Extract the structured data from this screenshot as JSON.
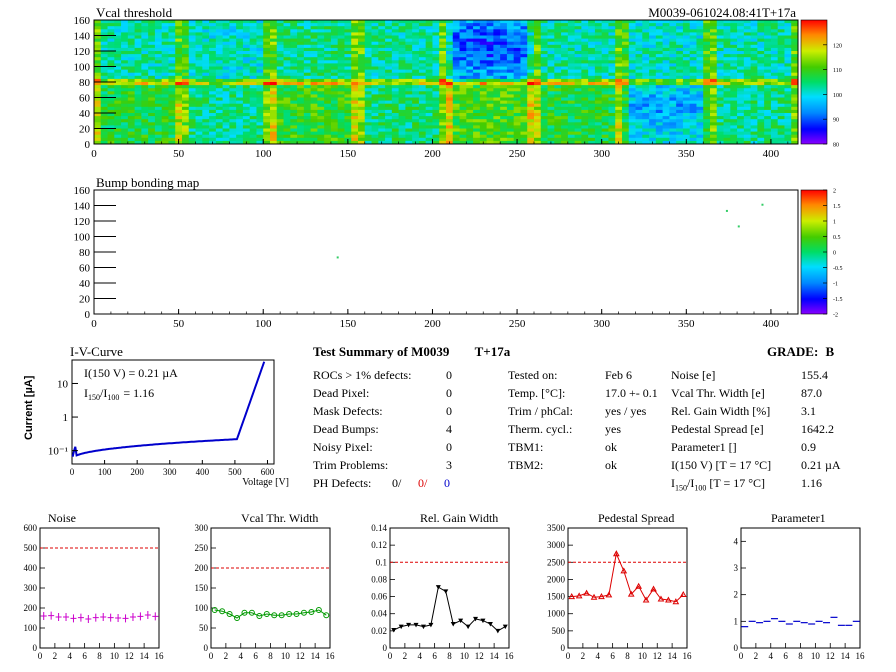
{
  "module_label": "M0039-061024.08:41T+17a",
  "vcal_map": {
    "title": "Vcal threshold",
    "x_ticks": [
      "0",
      "50",
      "100",
      "150",
      "200",
      "250",
      "300",
      "350",
      "400"
    ],
    "y_ticks": [
      "0",
      "20",
      "40",
      "60",
      "80",
      "100",
      "120",
      "140",
      "160"
    ],
    "xlim": [
      0,
      416
    ],
    "ylim": [
      0,
      160
    ],
    "colorbar_ticks": [
      "80",
      "90",
      "100",
      "110",
      "120"
    ],
    "colorbar_range": [
      80,
      130
    ]
  },
  "bump_map": {
    "title": "Bump bonding map",
    "x_ticks": [
      "0",
      "50",
      "100",
      "150",
      "200",
      "250",
      "300",
      "350",
      "400"
    ],
    "y_ticks": [
      "0",
      "20",
      "40",
      "60",
      "80",
      "100",
      "120",
      "140",
      "160"
    ],
    "xlim": [
      0,
      416
    ],
    "ylim": [
      0,
      160
    ],
    "colorbar_ticks": [
      "-2",
      "-1.5",
      "-1",
      "-0.5",
      "0",
      "0.5",
      "1",
      "1.5",
      "2"
    ],
    "colorbar_range": [
      -2,
      2
    ],
    "points": [
      {
        "x": 144,
        "y": 73
      },
      {
        "x": 374,
        "y": 133
      },
      {
        "x": 381,
        "y": 113
      },
      {
        "x": 395,
        "y": 141
      }
    ]
  },
  "iv_curve": {
    "title": "I-V-Curve",
    "ylabel": "Current [µA]",
    "xlabel": "Voltage [V]",
    "annotation_1": "I(150 V) = 0.21 µA",
    "annotation_2_main": "I",
    "annotation_2_sub1": "150",
    "annotation_2_mid": "/I",
    "annotation_2_sub2": "100",
    "annotation_2_value": "= 1.16",
    "x_ticks": [
      "0",
      "100",
      "200",
      "300",
      "400",
      "500",
      "600"
    ],
    "y_ticks": [
      "10⁻¹",
      "1",
      "10"
    ],
    "xlim": [
      0,
      620
    ],
    "ylog_range": [
      0.04,
      50
    ]
  },
  "summary": {
    "title": "Test Summary of M0039",
    "tag": "T+17a",
    "grade_label": "GRADE:",
    "grade": "B",
    "left_rows": [
      {
        "label": "ROCs > 1% defects:",
        "value": "0"
      },
      {
        "label": "Dead Pixel:",
        "value": "0"
      },
      {
        "label": "Mask Defects:",
        "value": "0"
      },
      {
        "label": "Dead Bumps:",
        "value": "4"
      },
      {
        "label": "Noisy Pixel:",
        "value": "0"
      },
      {
        "label": "Trim Problems:",
        "value": "3"
      }
    ],
    "ph_label": "PH Defects:",
    "ph_values": [
      "0/",
      "0/",
      "0"
    ],
    "ph_colors": [
      "#000000",
      "#dd0000",
      "#0000cc"
    ],
    "mid_rows": [
      {
        "label": "Tested on:",
        "value": "Feb 6"
      },
      {
        "label": "Temp. [°C]:",
        "value": "17.0 +- 0.1"
      },
      {
        "label": "Trim / phCal:",
        "value": "yes / yes"
      },
      {
        "label": "Therm. cycl.:",
        "value": "yes"
      },
      {
        "label": "TBM1:",
        "value": "ok"
      },
      {
        "label": "TBM2:",
        "value": "ok"
      }
    ],
    "right_rows": [
      {
        "label": "Noise [e]",
        "value": "155.4"
      },
      {
        "label": "Vcal Thr. Width [e]",
        "value": "87.0"
      },
      {
        "label": "Rel. Gain Width [%]",
        "value": "3.1"
      },
      {
        "label": "Pedestal Spread [e]",
        "value": "1642.2"
      },
      {
        "label": "Parameter1 []",
        "value": "0.9"
      },
      {
        "label": "I(150 V) [T = 17 °C]",
        "value": "0.21 µA"
      }
    ],
    "ratio_row": {
      "label_main": "I",
      "sub1": "150",
      "mid": "/I",
      "sub2": "100",
      "rest": "[T = 17 °C]",
      "value": "1.16"
    }
  },
  "chart_data": [
    {
      "type": "scatter",
      "title": "Noise",
      "color": "#cc00cc",
      "marker": "plus",
      "x": [
        0,
        1,
        2,
        3,
        4,
        5,
        6,
        7,
        8,
        9,
        10,
        11,
        12,
        13,
        14,
        15
      ],
      "values": [
        160,
        162,
        155,
        155,
        148,
        152,
        145,
        152,
        155,
        152,
        150,
        148,
        155,
        158,
        165,
        158
      ],
      "ylim": [
        0,
        600
      ],
      "yticks": [
        "0",
        "100",
        "200",
        "300",
        "400",
        "500",
        "600"
      ],
      "xticks": [
        "0",
        "2",
        "4",
        "6",
        "8",
        "10",
        "12",
        "14",
        "16"
      ],
      "threshold": 500
    },
    {
      "type": "line",
      "title": "Vcal Thr. Width",
      "color": "#009900",
      "marker": "circle",
      "x": [
        0,
        1,
        2,
        3,
        4,
        5,
        6,
        7,
        8,
        9,
        10,
        11,
        12,
        13,
        14,
        15
      ],
      "values": [
        95,
        92,
        85,
        75,
        88,
        88,
        80,
        85,
        82,
        82,
        85,
        85,
        88,
        90,
        95,
        82
      ],
      "ylim": [
        0,
        300
      ],
      "yticks": [
        "0",
        "50",
        "100",
        "150",
        "200",
        "250",
        "300"
      ],
      "xticks": [
        "0",
        "2",
        "4",
        "6",
        "8",
        "10",
        "12",
        "14",
        "16"
      ],
      "threshold": 200
    },
    {
      "type": "line",
      "title": "Rel. Gain Width",
      "color": "#000000",
      "marker": "triangle-down",
      "x": [
        0,
        1,
        2,
        3,
        4,
        5,
        6,
        7,
        8,
        9,
        10,
        11,
        12,
        13,
        14,
        15
      ],
      "values": [
        0.021,
        0.025,
        0.027,
        0.027,
        0.025,
        0.027,
        0.071,
        0.066,
        0.028,
        0.032,
        0.025,
        0.034,
        0.032,
        0.028,
        0.02,
        0.025
      ],
      "ylim": [
        0,
        0.14
      ],
      "yticks": [
        "0",
        "0.02",
        "0.04",
        "0.06",
        "0.08",
        "0.1",
        "0.12",
        "0.14"
      ],
      "xticks": [
        "0",
        "2",
        "4",
        "6",
        "8",
        "10",
        "12",
        "14",
        "16"
      ],
      "threshold": 0.1
    },
    {
      "type": "line",
      "title": "Pedestal Spread",
      "color": "#dd0000",
      "marker": "triangle-up",
      "x": [
        0,
        1,
        2,
        3,
        4,
        5,
        6,
        7,
        8,
        9,
        10,
        11,
        12,
        13,
        14,
        15
      ],
      "values": [
        1500,
        1520,
        1600,
        1480,
        1500,
        1550,
        2750,
        2250,
        1570,
        1800,
        1400,
        1720,
        1430,
        1400,
        1350,
        1560
      ],
      "ylim": [
        0,
        3500
      ],
      "yticks": [
        "0",
        "500",
        "1000",
        "1500",
        "2000",
        "2500",
        "3000",
        "3500"
      ],
      "xticks": [
        "0",
        "2",
        "4",
        "6",
        "8",
        "10",
        "12",
        "14",
        "16"
      ],
      "threshold": 2500
    },
    {
      "type": "scatter",
      "title": "Parameter1",
      "color": "#0000cc",
      "marker": "hbar",
      "x": [
        0,
        1,
        2,
        3,
        4,
        5,
        6,
        7,
        8,
        9,
        10,
        11,
        12,
        13,
        14,
        15
      ],
      "values": [
        0.8,
        1.0,
        0.95,
        1.0,
        1.1,
        1.0,
        0.9,
        1.0,
        0.95,
        0.9,
        1.0,
        0.95,
        1.15,
        0.85,
        0.85,
        1.0
      ],
      "ylim": [
        0,
        4.5
      ],
      "yticks": [
        "0",
        "1",
        "2",
        "3",
        "4"
      ],
      "xticks": [
        "0",
        "2",
        "4",
        "6",
        "8",
        "10",
        "12",
        "14",
        "16"
      ],
      "threshold": null
    }
  ]
}
